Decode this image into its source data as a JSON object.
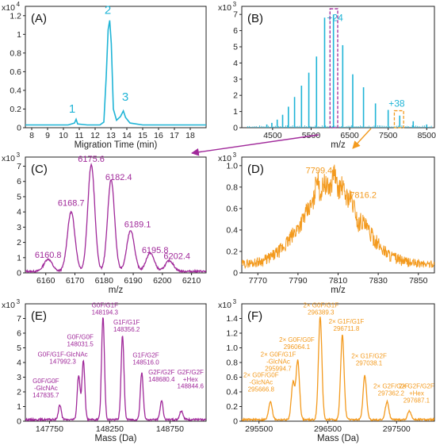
{
  "colors": {
    "cyan": "#1fb4d6",
    "magenta": "#a0299a",
    "orange": "#f39a1e",
    "axis": "#222222"
  },
  "chart_data": [
    {
      "panel": "(A)",
      "type": "line",
      "color": "cyan",
      "xlabel": "Migration Time (min)",
      "ylabel": "",
      "exponent": "x10 4",
      "xlim": [
        7.6,
        19.0
      ],
      "ylim": [
        0,
        1.3
      ],
      "xticks": [
        8,
        9,
        10,
        11,
        12,
        13,
        14,
        15,
        16,
        17,
        18
      ],
      "yticks": [
        0,
        0.2,
        0.4,
        0.6,
        0.8,
        1.0,
        1.2
      ],
      "ytick_labels": [
        "0",
        "0.2",
        "0.4",
        "0.6",
        "0.8",
        "1",
        "1.2"
      ],
      "points": [
        [
          7.6,
          0.03
        ],
        [
          10.3,
          0.03
        ],
        [
          10.7,
          0.05
        ],
        [
          10.8,
          0.09
        ],
        [
          10.9,
          0.04
        ],
        [
          11.5,
          0.03
        ],
        [
          12.3,
          0.03
        ],
        [
          12.55,
          0.06
        ],
        [
          12.7,
          0.55
        ],
        [
          12.82,
          1.05
        ],
        [
          12.92,
          1.15
        ],
        [
          13.02,
          0.9
        ],
        [
          13.15,
          0.2
        ],
        [
          13.35,
          0.08
        ],
        [
          13.6,
          0.12
        ],
        [
          13.78,
          0.18
        ],
        [
          13.92,
          0.11
        ],
        [
          14.2,
          0.05
        ],
        [
          15,
          0.03
        ],
        [
          19,
          0.03
        ]
      ],
      "annotations": [
        {
          "label": "1",
          "x": 10.55,
          "y": 0.16
        },
        {
          "label": "2",
          "x": 12.8,
          "y": 1.22
        },
        {
          "label": "3",
          "x": 13.9,
          "y": 0.29
        }
      ]
    },
    {
      "panel": "(B)",
      "type": "bar",
      "color": "cyan",
      "xlabel": "m/z",
      "ylabel": "",
      "exponent": "x10 3",
      "xlim": [
        3700,
        8700
      ],
      "ylim": [
        0,
        7.5
      ],
      "xticks": [
        4500,
        5500,
        6500,
        7500,
        8500
      ],
      "yticks": [
        0,
        1,
        2,
        3,
        4,
        5,
        6,
        7
      ],
      "ytick_labels": [
        "0",
        "1",
        "2",
        "3",
        "4",
        "5",
        "6",
        "7"
      ],
      "sticks": [
        [
          4350,
          0.2
        ],
        [
          4480,
          0.3
        ],
        [
          4620,
          0.5
        ],
        [
          4760,
          0.8
        ],
        [
          4910,
          1.3
        ],
        [
          5070,
          1.9
        ],
        [
          5250,
          2.6
        ],
        [
          5440,
          3.4
        ],
        [
          5640,
          4.4
        ],
        [
          5850,
          6.8
        ],
        [
          6080,
          7.0
        ],
        [
          6320,
          5.1
        ],
        [
          6580,
          3.3
        ],
        [
          6860,
          2.5
        ],
        [
          7170,
          1.5
        ],
        [
          7500,
          1.1
        ],
        [
          7800,
          0.75
        ],
        [
          8150,
          0.4
        ],
        [
          8500,
          0.2
        ]
      ],
      "annotations": [
        {
          "label": "+24",
          "x": 6120,
          "y": 6.6
        },
        {
          "label": "+38",
          "x": 7720,
          "y": 1.3
        }
      ]
    },
    {
      "panel": "(C)",
      "type": "line",
      "color": "magenta",
      "xlabel": "m/z",
      "ylabel": "",
      "exponent": "x10 3",
      "xlim": [
        6153,
        6215
      ],
      "ylim": [
        0,
        7.6
      ],
      "xticks": [
        6160,
        6170,
        6180,
        6190,
        6200,
        6210
      ],
      "yticks": [
        0,
        1,
        2,
        3,
        4,
        5,
        6,
        7
      ],
      "ytick_labels": [
        "0",
        "1",
        "2",
        "3",
        "4",
        "5",
        "6",
        "7"
      ],
      "peaks": [
        [
          6160.8,
          0.8,
          1.4
        ],
        [
          6168.7,
          3.9,
          1.3
        ],
        [
          6175.6,
          7.0,
          1.2
        ],
        [
          6182.4,
          6.0,
          1.2
        ],
        [
          6189.1,
          2.7,
          1.3
        ],
        [
          6195.8,
          1.2,
          1.4
        ],
        [
          6202.4,
          0.7,
          1.4
        ]
      ],
      "annotations": [
        {
          "label": "6160.8",
          "x": 6160.8,
          "y": 1.0
        },
        {
          "label": "6168.7",
          "x": 6168.7,
          "y": 4.4
        },
        {
          "label": "6175.6",
          "x": 6175.6,
          "y": 7.3
        },
        {
          "label": "6182.4",
          "x": 6185.0,
          "y": 6.1
        },
        {
          "label": "6189.1",
          "x": 6191.5,
          "y": 3.0
        },
        {
          "label": "6195.8",
          "x": 6197.5,
          "y": 1.3
        },
        {
          "label": "6202.4",
          "x": 6205.0,
          "y": 0.9
        }
      ]
    },
    {
      "panel": "(D)",
      "type": "line",
      "color": "orange",
      "xlabel": "m/z",
      "ylabel": "",
      "exponent": "x10 3",
      "xlim": [
        7762,
        7858
      ],
      "ylim": [
        0,
        1.08
      ],
      "xticks": [
        7770,
        7790,
        7810,
        7830,
        7850
      ],
      "yticks": [
        0,
        0.2,
        0.4,
        0.6,
        0.8,
        1.0
      ],
      "ytick_labels": [
        "0",
        "0.2",
        "0.4",
        "0.6",
        "0.8",
        "1.0"
      ],
      "envelope": {
        "center": 7807,
        "width": 14,
        "height": 0.72,
        "base": 0.08
      },
      "spikes": [
        [
          7799.4,
          0.85
        ],
        [
          7803,
          0.72
        ],
        [
          7808,
          0.8
        ],
        [
          7812,
          0.7
        ],
        [
          7816.2,
          0.68
        ],
        [
          7820,
          0.55
        ]
      ],
      "annotations": [
        {
          "label": "7799.4",
          "x": 7800.5,
          "y": 0.93
        },
        {
          "label": "7816.2",
          "x": 7822.5,
          "y": 0.7
        }
      ]
    },
    {
      "panel": "(E)",
      "type": "line",
      "color": "magenta",
      "xlabel": "Mass (Da)",
      "ylabel": "",
      "exponent": "x10 3",
      "xlim": [
        147550,
        149050
      ],
      "ylim": [
        0,
        8
      ],
      "xticks": [
        147750,
        148250,
        148750
      ],
      "yticks": [
        0,
        1,
        2,
        3,
        4,
        5,
        6,
        7
      ],
      "ytick_labels": [
        "0",
        "1",
        "2",
        "3",
        "4",
        "5",
        "6",
        "7"
      ],
      "peaks": [
        [
          147835.7,
          1.0,
          12
        ],
        [
          147992.3,
          3.0,
          12
        ],
        [
          148031.5,
          4.0,
          12
        ],
        [
          148194.3,
          7.0,
          12
        ],
        [
          148356.2,
          5.7,
          12
        ],
        [
          148516.0,
          3.2,
          12
        ],
        [
          148680.4,
          1.3,
          12
        ],
        [
          148844.6,
          0.6,
          14
        ]
      ],
      "annotations": [
        {
          "lines": [
            "G0F/G0F",
            "-GlcNAc",
            "147835.7"
          ],
          "x": 147720,
          "y": 2.6
        },
        {
          "lines": [
            "G0F/G1F-GlcNAc",
            "147992.3"
          ],
          "x": 147860,
          "y": 4.4
        },
        {
          "lines": [
            "G0F/G0F",
            "148031.5"
          ],
          "x": 148005,
          "y": 5.6
        },
        {
          "lines": [
            "G0F/G1F",
            "148194.3"
          ],
          "x": 148210,
          "y": 7.75
        },
        {
          "lines": [
            "G1F/G1F",
            "148356.2"
          ],
          "x": 148390,
          "y": 6.6
        },
        {
          "lines": [
            "G1F/G2F",
            "148516.0"
          ],
          "x": 148550,
          "y": 4.35
        },
        {
          "lines": [
            "G2F/G2F",
            "148680.4"
          ],
          "x": 148680,
          "y": 3.2
        },
        {
          "lines": [
            "G2F/G2F",
            "+Hex",
            "148844.6"
          ],
          "x": 148920,
          "y": 3.2
        }
      ]
    },
    {
      "panel": "(F)",
      "type": "line",
      "color": "orange",
      "xlabel": "Mass (Da)",
      "ylabel": "",
      "exponent": "x10 3",
      "xlim": [
        295250,
        298050
      ],
      "ylim": [
        0,
        1.6
      ],
      "xticks": [
        295500,
        296500,
        297500
      ],
      "yticks": [
        0,
        0.2,
        0.4,
        0.6,
        0.8,
        1.0,
        1.2,
        1.4
      ],
      "ytick_labels": [
        "0",
        "0.2",
        "0.4",
        "0.6",
        "0.8",
        "1.0",
        "1.2",
        "1.4"
      ],
      "peaks": [
        [
          295666.8,
          0.25,
          25
        ],
        [
          295994.7,
          0.5,
          25
        ],
        [
          296064.1,
          0.8,
          25
        ],
        [
          296389.3,
          1.4,
          25
        ],
        [
          296711.8,
          1.15,
          25
        ],
        [
          297038.1,
          0.6,
          25
        ],
        [
          297362.2,
          0.25,
          25
        ],
        [
          297687.1,
          0.12,
          25
        ]
      ],
      "annotations": [
        {
          "lines": [
            "2× G0F/G0F",
            "-GlcNAc",
            "295666.8"
          ],
          "x": 295530,
          "y": 0.6
        },
        {
          "lines": [
            "2× G0F/G1F",
            "-GlcNAc",
            "295994.7"
          ],
          "x": 295780,
          "y": 0.88
        },
        {
          "lines": [
            "2× G0F/G0F",
            "296064.1"
          ],
          "x": 296050,
          "y": 1.08
        },
        {
          "lines": [
            "2× G0F/G1F",
            "296389.3"
          ],
          "x": 296400,
          "y": 1.55
        },
        {
          "lines": [
            "2× G1F/G1F",
            "296711.8"
          ],
          "x": 296770,
          "y": 1.33
        },
        {
          "lines": [
            "2× G1F/G2F",
            "297038.1"
          ],
          "x": 297100,
          "y": 0.86
        },
        {
          "lines": [
            "2× G2F/G2F",
            "297362.2"
          ],
          "x": 297420,
          "y": 0.45
        },
        {
          "lines": [
            "2× G2F/G2F",
            "+Hex",
            "297687.1"
          ],
          "x": 297790,
          "y": 0.45
        }
      ]
    }
  ]
}
